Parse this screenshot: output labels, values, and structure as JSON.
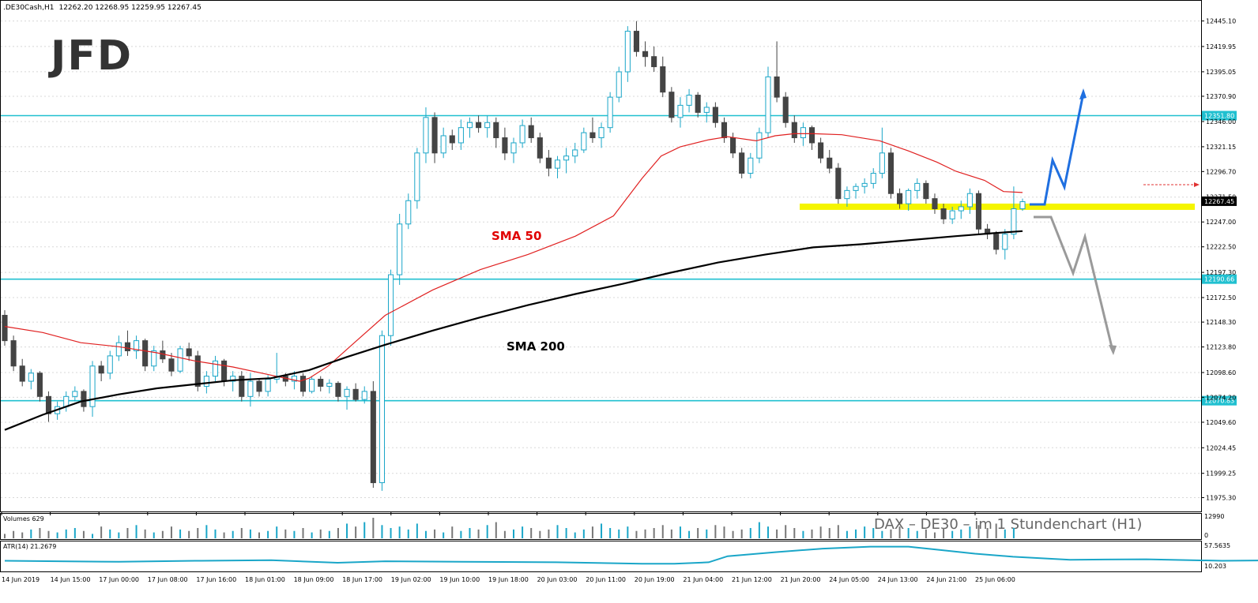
{
  "header": {
    "symbol": ".DE30Cash,H1",
    "ohlc": "12262.20 12268.95 12259.95 12267.45"
  },
  "logo": {
    "text": "JFD"
  },
  "chart_data": {
    "type": "candlestick",
    "symbol": ".DE30Cash",
    "timeframe": "H1",
    "ylim": [
      11964,
      12458
    ],
    "y_ticks": [
      "12445.10",
      "12419.95",
      "12395.05",
      "12370.90",
      "12346.00",
      "12321.15",
      "12296.70",
      "12271.50",
      "12247.00",
      "12222.50",
      "12197.30",
      "12172.50",
      "12148.30",
      "12123.80",
      "12098.60",
      "12074.20",
      "12049.60",
      "12024.45",
      "11999.25",
      "11975.30"
    ],
    "x_ticks": [
      "14 Jun 2019",
      "14 Jun 15:00",
      "17 Jun 00:00",
      "17 Jun 08:00",
      "17 Jun 16:00",
      "18 Jun 01:00",
      "18 Jun 09:00",
      "18 Jun 17:00",
      "19 Jun 02:00",
      "19 Jun 10:00",
      "19 Jun 18:00",
      "20 Jun 03:00",
      "20 Jun 11:00",
      "20 Jun 19:00",
      "21 Jun 04:00",
      "21 Jun 12:00",
      "21 Jun 20:00",
      "24 Jun 05:00",
      "24 Jun 13:00",
      "24 Jun 21:00",
      "25 Jun 06:00"
    ],
    "horizontal_levels": [
      {
        "label": "12351.80",
        "value": 12351.8,
        "color": "#20c0d0"
      },
      {
        "label": "12190.66",
        "value": 12190.66,
        "color": "#20c0d0"
      },
      {
        "label": "12070.83",
        "value": 12070.83,
        "color": "#20c0d0"
      }
    ],
    "current_price": {
      "label": "12267.45",
      "value": 12267.45
    },
    "support_zone": {
      "value": 12262,
      "color": "#f5f500"
    },
    "annotations": {
      "sma50": "SMA 50",
      "sma200": "SMA 200",
      "caption": "DAX – DE30 –  im 1 Stundenchart (H1)"
    },
    "sma50": [
      [
        0,
        12144
      ],
      [
        20,
        12138
      ],
      [
        40,
        12128
      ],
      [
        60,
        12124
      ],
      [
        80,
        12118
      ],
      [
        100,
        12110
      ],
      [
        120,
        12104
      ],
      [
        140,
        12096
      ],
      [
        155,
        12090
      ],
      [
        160,
        12093
      ],
      [
        170,
        12105
      ],
      [
        185,
        12130
      ],
      [
        200,
        12155
      ],
      [
        225,
        12180
      ],
      [
        250,
        12200
      ],
      [
        275,
        12215
      ],
      [
        300,
        12233
      ],
      [
        320,
        12253
      ],
      [
        335,
        12290
      ],
      [
        345,
        12312
      ],
      [
        355,
        12321
      ],
      [
        370,
        12328
      ],
      [
        380,
        12331
      ],
      [
        395,
        12327
      ],
      [
        405,
        12332
      ],
      [
        415,
        12334
      ],
      [
        425,
        12334
      ],
      [
        440,
        12333
      ],
      [
        460,
        12327
      ],
      [
        475,
        12317
      ],
      [
        490,
        12306
      ],
      [
        500,
        12297
      ],
      [
        515,
        12288
      ],
      [
        525,
        12277
      ],
      [
        535,
        12276
      ]
    ],
    "sma200": [
      [
        0,
        12042
      ],
      [
        20,
        12057
      ],
      [
        40,
        12070
      ],
      [
        60,
        12077
      ],
      [
        80,
        12083
      ],
      [
        100,
        12087
      ],
      [
        120,
        12091
      ],
      [
        140,
        12093
      ],
      [
        160,
        12101
      ],
      [
        180,
        12114
      ],
      [
        200,
        12126
      ],
      [
        225,
        12140
      ],
      [
        250,
        12153
      ],
      [
        275,
        12165
      ],
      [
        300,
        12176
      ],
      [
        325,
        12186
      ],
      [
        350,
        12197
      ],
      [
        375,
        12207
      ],
      [
        400,
        12215
      ],
      [
        425,
        12222
      ],
      [
        450,
        12225
      ],
      [
        475,
        12229
      ],
      [
        500,
        12233
      ],
      [
        520,
        12236
      ],
      [
        535,
        12238
      ]
    ],
    "candles": [
      [
        12155,
        12160,
        12125,
        12130
      ],
      [
        12130,
        12135,
        12100,
        12105
      ],
      [
        12105,
        12112,
        12085,
        12090
      ],
      [
        12090,
        12102,
        12082,
        12098
      ],
      [
        12098,
        12100,
        12070,
        12075
      ],
      [
        12075,
        12080,
        12050,
        12058
      ],
      [
        12058,
        12070,
        12052,
        12065
      ],
      [
        12065,
        12080,
        12060,
        12075
      ],
      [
        12075,
        12085,
        12070,
        12080
      ],
      [
        12080,
        12082,
        12060,
        12065
      ],
      [
        12065,
        12110,
        12055,
        12105
      ],
      [
        12105,
        12110,
        12090,
        12098
      ],
      [
        12098,
        12120,
        12092,
        12115
      ],
      [
        12115,
        12135,
        12110,
        12128
      ],
      [
        12128,
        12140,
        12115,
        12120
      ],
      [
        12120,
        12135,
        12112,
        12130
      ],
      [
        12130,
        12132,
        12100,
        12105
      ],
      [
        12105,
        12125,
        12100,
        12120
      ],
      [
        12120,
        12130,
        12108,
        12112
      ],
      [
        12112,
        12118,
        12095,
        12100
      ],
      [
        12100,
        12125,
        12098,
        12122
      ],
      [
        12122,
        12128,
        12110,
        12115
      ],
      [
        12115,
        12120,
        12080,
        12085
      ],
      [
        12085,
        12100,
        12078,
        12095
      ],
      [
        12095,
        12115,
        12090,
        12110
      ],
      [
        12110,
        12112,
        12085,
        12090
      ],
      [
        12090,
        12100,
        12080,
        12095
      ],
      [
        12095,
        12100,
        12070,
        12075
      ],
      [
        12075,
        12098,
        12065,
        12090
      ],
      [
        12090,
        12092,
        12075,
        12080
      ],
      [
        12080,
        12096,
        12075,
        12092
      ],
      [
        12092,
        12118,
        12088,
        12095
      ],
      [
        12095,
        12098,
        12085,
        12090
      ],
      [
        12090,
        12100,
        12082,
        12095
      ],
      [
        12095,
        12098,
        12075,
        12080
      ],
      [
        12080,
        12095,
        12078,
        12092
      ],
      [
        12092,
        12095,
        12080,
        12085
      ],
      [
        12085,
        12092,
        12078,
        12088
      ],
      [
        12088,
        12090,
        12070,
        12075
      ],
      [
        12075,
        12085,
        12062,
        12082
      ],
      [
        12082,
        12088,
        12070,
        12072
      ],
      [
        12072,
        12085,
        12068,
        12080
      ],
      [
        12080,
        12090,
        11985,
        11990
      ],
      [
        11990,
        12140,
        11982,
        12135
      ],
      [
        12135,
        12200,
        12125,
        12195
      ],
      [
        12195,
        12255,
        12185,
        12245
      ],
      [
        12245,
        12275,
        12240,
        12268
      ],
      [
        12268,
        12320,
        12260,
        12315
      ],
      [
        12315,
        12360,
        12305,
        12350
      ],
      [
        12350,
        12355,
        12305,
        12315
      ],
      [
        12315,
        12340,
        12310,
        12332
      ],
      [
        12332,
        12338,
        12318,
        12325
      ],
      [
        12325,
        12348,
        12318,
        12340
      ],
      [
        12340,
        12350,
        12330,
        12345
      ],
      [
        12345,
        12352,
        12335,
        12340
      ],
      [
        12340,
        12352,
        12330,
        12345
      ],
      [
        12345,
        12350,
        12320,
        12330
      ],
      [
        12330,
        12340,
        12308,
        12315
      ],
      [
        12315,
        12330,
        12305,
        12325
      ],
      [
        12325,
        12348,
        12320,
        12342
      ],
      [
        12342,
        12350,
        12325,
        12330
      ],
      [
        12330,
        12335,
        12305,
        12310
      ],
      [
        12310,
        12318,
        12292,
        12300
      ],
      [
        12300,
        12312,
        12290,
        12308
      ],
      [
        12308,
        12320,
        12295,
        12312
      ],
      [
        12312,
        12325,
        12305,
        12318
      ],
      [
        12318,
        12340,
        12315,
        12335
      ],
      [
        12335,
        12350,
        12325,
        12330
      ],
      [
        12330,
        12345,
        12320,
        12340
      ],
      [
        12340,
        12375,
        12335,
        12370
      ],
      [
        12370,
        12400,
        12365,
        12395
      ],
      [
        12395,
        12440,
        12385,
        12435
      ],
      [
        12435,
        12445,
        12410,
        12415
      ],
      [
        12415,
        12425,
        12400,
        12410
      ],
      [
        12410,
        12420,
        12395,
        12400
      ],
      [
        12400,
        12410,
        12370,
        12375
      ],
      [
        12375,
        12380,
        12345,
        12350
      ],
      [
        12350,
        12370,
        12340,
        12362
      ],
      [
        12362,
        12378,
        12355,
        12372
      ],
      [
        12372,
        12375,
        12350,
        12355
      ],
      [
        12355,
        12365,
        12345,
        12360
      ],
      [
        12360,
        12365,
        12340,
        12345
      ],
      [
        12345,
        12350,
        12325,
        12330
      ],
      [
        12330,
        12335,
        12310,
        12315
      ],
      [
        12315,
        12320,
        12290,
        12295
      ],
      [
        12295,
        12315,
        12290,
        12310
      ],
      [
        12310,
        12340,
        12305,
        12335
      ],
      [
        12335,
        12400,
        12330,
        12390
      ],
      [
        12390,
        12425,
        12365,
        12370
      ],
      [
        12370,
        12375,
        12340,
        12345
      ],
      [
        12345,
        12352,
        12325,
        12330
      ],
      [
        12330,
        12345,
        12322,
        12340
      ],
      [
        12340,
        12342,
        12318,
        12325
      ],
      [
        12325,
        12330,
        12305,
        12310
      ],
      [
        12310,
        12318,
        12295,
        12300
      ],
      [
        12300,
        12305,
        12265,
        12270
      ],
      [
        12270,
        12282,
        12262,
        12278
      ],
      [
        12278,
        12285,
        12270,
        12282
      ],
      [
        12282,
        12290,
        12275,
        12285
      ],
      [
        12285,
        12300,
        12280,
        12295
      ],
      [
        12295,
        12340,
        12290,
        12315
      ],
      [
        12315,
        12320,
        12270,
        12275
      ],
      [
        12275,
        12280,
        12260,
        12265
      ],
      [
        12265,
        12280,
        12258,
        12278
      ],
      [
        12278,
        12290,
        12270,
        12285
      ],
      [
        12285,
        12288,
        12265,
        12270
      ],
      [
        12270,
        12275,
        12255,
        12260
      ],
      [
        12260,
        12265,
        12245,
        12250
      ],
      [
        12250,
        12262,
        12245,
        12258
      ],
      [
        12258,
        12268,
        12250,
        12262
      ],
      [
        12262,
        12280,
        12255,
        12275
      ],
      [
        12275,
        12278,
        12235,
        12240
      ],
      [
        12240,
        12245,
        12230,
        12235
      ],
      [
        12235,
        12238,
        12215,
        12220
      ],
      [
        12220,
        12240,
        12210,
        12235
      ],
      [
        12235,
        12282,
        12230,
        12260
      ],
      [
        12260,
        12270,
        12258,
        12267
      ]
    ],
    "volume_label": "Volumes 629",
    "volume_ticks": [
      "12990",
      "0"
    ],
    "volumes": [
      3,
      5,
      4,
      6,
      7,
      5,
      4,
      6,
      7,
      5,
      3,
      8,
      6,
      4,
      7,
      9,
      6,
      4,
      5,
      8,
      6,
      5,
      7,
      9,
      6,
      4,
      5,
      7,
      6,
      4,
      5,
      8,
      6,
      5,
      7,
      4,
      6,
      5,
      7,
      10,
      8,
      11,
      14,
      9,
      7,
      8,
      6,
      10,
      5,
      6,
      4,
      8,
      5,
      7,
      6,
      9,
      11,
      5,
      6,
      8,
      7,
      5,
      6,
      9,
      7,
      4,
      6,
      8,
      10,
      7,
      6,
      8,
      5,
      6,
      7,
      9,
      6,
      8,
      5,
      7,
      6,
      9,
      8,
      5,
      6,
      7,
      11,
      8,
      6,
      9,
      7,
      5,
      6,
      8,
      7,
      9,
      5,
      6,
      8,
      7,
      5,
      6,
      8,
      7,
      5,
      6,
      4,
      7,
      5,
      6,
      8,
      9,
      7,
      10,
      6,
      7
    ],
    "atr_label": "ATR(14) 21.2679",
    "atr_ticks": [
      "57.5635",
      "10.203"
    ],
    "atr": [
      [
        0,
        28
      ],
      [
        60,
        26
      ],
      [
        100,
        28
      ],
      [
        140,
        29
      ],
      [
        175,
        24
      ],
      [
        200,
        27
      ],
      [
        240,
        26
      ],
      [
        290,
        25
      ],
      [
        335,
        22
      ],
      [
        352,
        22
      ],
      [
        370,
        25
      ],
      [
        380,
        37
      ],
      [
        405,
        45
      ],
      [
        430,
        52
      ],
      [
        455,
        56
      ],
      [
        475,
        56
      ],
      [
        490,
        50
      ],
      [
        510,
        42
      ],
      [
        530,
        36
      ],
      [
        560,
        30
      ],
      [
        600,
        31
      ],
      [
        640,
        28
      ],
      [
        700,
        30
      ],
      [
        735,
        27
      ],
      [
        760,
        30
      ],
      [
        800,
        31
      ],
      [
        840,
        30
      ],
      [
        880,
        28
      ],
      [
        910,
        26
      ],
      [
        935,
        33
      ],
      [
        970,
        32
      ],
      [
        1000,
        30
      ],
      [
        1030,
        28
      ],
      [
        1060,
        28
      ],
      [
        1090,
        30
      ],
      [
        1120,
        30
      ],
      [
        1160,
        30
      ],
      [
        1200,
        28
      ],
      [
        1240,
        26
      ],
      [
        1262,
        26
      ],
      [
        1275,
        27
      ],
      [
        1294,
        29
      ]
    ]
  }
}
